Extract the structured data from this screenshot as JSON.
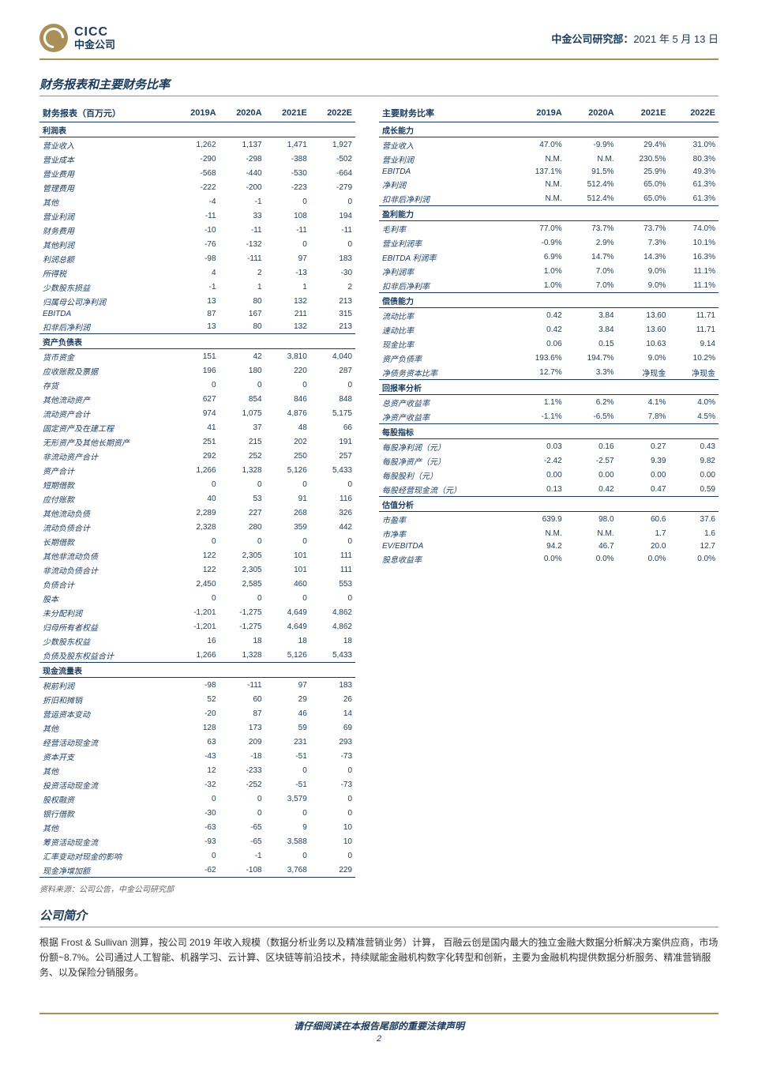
{
  "header": {
    "logo_en": "CICC",
    "logo_cn": "中金公司",
    "dept": "中金公司研究部：",
    "date": "2021 年 5 月 13 日"
  },
  "section1_title": "财务报表和主要财务比率",
  "left_table": {
    "header": [
      "财务报表（百万元）",
      "2019A",
      "2020A",
      "2021E",
      "2022E"
    ],
    "groups": [
      {
        "head": "利润表",
        "rows": [
          [
            "营业收入",
            "1,262",
            "1,137",
            "1,471",
            "1,927"
          ],
          [
            "营业成本",
            "-290",
            "-298",
            "-388",
            "-502"
          ],
          [
            "营业费用",
            "-568",
            "-440",
            "-530",
            "-664"
          ],
          [
            "管理费用",
            "-222",
            "-200",
            "-223",
            "-279"
          ],
          [
            "其他",
            "-4",
            "-1",
            "0",
            "0"
          ],
          [
            "营业利润",
            "-11",
            "33",
            "108",
            "194"
          ],
          [
            "财务费用",
            "-10",
            "-11",
            "-11",
            "-11"
          ],
          [
            "其他利润",
            "-76",
            "-132",
            "0",
            "0"
          ],
          [
            "利润总额",
            "-98",
            "-111",
            "97",
            "183"
          ],
          [
            "所得税",
            "4",
            "2",
            "-13",
            "-30"
          ],
          [
            "少数股东损益",
            "-1",
            "1",
            "1",
            "2"
          ],
          [
            "归属母公司净利润",
            "13",
            "80",
            "132",
            "213"
          ],
          [
            "EBITDA",
            "87",
            "167",
            "211",
            "315"
          ],
          [
            "扣非后净利润",
            "13",
            "80",
            "132",
            "213"
          ]
        ]
      },
      {
        "head": "资产负债表",
        "rows": [
          [
            "货币资金",
            "151",
            "42",
            "3,810",
            "4,040"
          ],
          [
            "应收账款及票据",
            "196",
            "180",
            "220",
            "287"
          ],
          [
            "存货",
            "0",
            "0",
            "0",
            "0"
          ],
          [
            "其他流动资产",
            "627",
            "854",
            "846",
            "848"
          ],
          [
            "流动资产合计",
            "974",
            "1,075",
            "4,876",
            "5,175"
          ],
          [
            "固定资产及在建工程",
            "41",
            "37",
            "48",
            "66"
          ],
          [
            "无形资产及其他长期资产",
            "251",
            "215",
            "202",
            "191"
          ],
          [
            "非流动资产合计",
            "292",
            "252",
            "250",
            "257"
          ],
          [
            "资产合计",
            "1,266",
            "1,328",
            "5,126",
            "5,433"
          ],
          [
            "短期借款",
            "0",
            "0",
            "0",
            "0"
          ],
          [
            "应付账款",
            "40",
            "53",
            "91",
            "116"
          ],
          [
            "其他流动负债",
            "2,289",
            "227",
            "268",
            "326"
          ],
          [
            "流动负债合计",
            "2,328",
            "280",
            "359",
            "442"
          ],
          [
            "长期借款",
            "0",
            "0",
            "0",
            "0"
          ],
          [
            "其他非流动负债",
            "122",
            "2,305",
            "101",
            "111"
          ],
          [
            "非流动负债合计",
            "122",
            "2,305",
            "101",
            "111"
          ],
          [
            "负债合计",
            "2,450",
            "2,585",
            "460",
            "553"
          ],
          [
            "股本",
            "0",
            "0",
            "0",
            "0"
          ],
          [
            "未分配利润",
            "-1,201",
            "-1,275",
            "4,649",
            "4,862"
          ],
          [
            "归母所有者权益",
            "-1,201",
            "-1,275",
            "4,649",
            "4,862"
          ],
          [
            "少数股东权益",
            "16",
            "18",
            "18",
            "18"
          ],
          [
            "负债及股东权益合计",
            "1,266",
            "1,328",
            "5,126",
            "5,433"
          ]
        ]
      },
      {
        "head": "现金流量表",
        "rows": [
          [
            "税前利润",
            "-98",
            "-111",
            "97",
            "183"
          ],
          [
            "折旧和摊销",
            "52",
            "60",
            "29",
            "26"
          ],
          [
            "营运资本变动",
            "-20",
            "87",
            "46",
            "14"
          ],
          [
            "其他",
            "128",
            "173",
            "59",
            "69"
          ],
          [
            "经营活动现金流",
            "63",
            "209",
            "231",
            "293"
          ],
          [
            "资本开支",
            "-43",
            "-18",
            "-51",
            "-73"
          ],
          [
            "其他",
            "12",
            "-233",
            "0",
            "0"
          ],
          [
            "投资活动现金流",
            "-32",
            "-252",
            "-51",
            "-73"
          ],
          [
            "股权融资",
            "0",
            "0",
            "3,579",
            "0"
          ],
          [
            "银行借款",
            "-30",
            "0",
            "0",
            "0"
          ],
          [
            "其他",
            "-63",
            "-65",
            "9",
            "10"
          ],
          [
            "筹资活动现金流",
            "-93",
            "-65",
            "3,588",
            "10"
          ],
          [
            "汇率变动对现金的影响",
            "0",
            "-1",
            "0",
            "0"
          ],
          [
            "现金净增加额",
            "-62",
            "-108",
            "3,768",
            "229"
          ]
        ]
      }
    ]
  },
  "right_table": {
    "header": [
      "主要财务比率",
      "2019A",
      "2020A",
      "2021E",
      "2022E"
    ],
    "groups": [
      {
        "head": "成长能力",
        "rows": [
          [
            "营业收入",
            "47.0%",
            "-9.9%",
            "29.4%",
            "31.0%"
          ],
          [
            "营业利润",
            "N.M.",
            "N.M.",
            "230.5%",
            "80.3%"
          ],
          [
            "EBITDA",
            "137.1%",
            "91.5%",
            "25.9%",
            "49.3%"
          ],
          [
            "净利润",
            "N.M.",
            "512.4%",
            "65.0%",
            "61.3%"
          ],
          [
            "扣非后净利润",
            "N.M.",
            "512.4%",
            "65.0%",
            "61.3%"
          ]
        ]
      },
      {
        "head": "盈利能力",
        "rows": [
          [
            "毛利率",
            "77.0%",
            "73.7%",
            "73.7%",
            "74.0%"
          ],
          [
            "营业利润率",
            "-0.9%",
            "2.9%",
            "7.3%",
            "10.1%"
          ],
          [
            "EBITDA 利润率",
            "6.9%",
            "14.7%",
            "14.3%",
            "16.3%"
          ],
          [
            "净利润率",
            "1.0%",
            "7.0%",
            "9.0%",
            "11.1%"
          ],
          [
            "扣非后净利率",
            "1.0%",
            "7.0%",
            "9.0%",
            "11.1%"
          ]
        ]
      },
      {
        "head": "偿债能力",
        "rows": [
          [
            "流动比率",
            "0.42",
            "3.84",
            "13.60",
            "11.71"
          ],
          [
            "速动比率",
            "0.42",
            "3.84",
            "13.60",
            "11.71"
          ],
          [
            "现金比率",
            "0.06",
            "0.15",
            "10.63",
            "9.14"
          ],
          [
            "资产负债率",
            "193.6%",
            "194.7%",
            "9.0%",
            "10.2%"
          ],
          [
            "净债务资本比率",
            "12.7%",
            "3.3%",
            "净现金",
            "净现金"
          ]
        ]
      },
      {
        "head": "回报率分析",
        "rows": [
          [
            "总资产收益率",
            "1.1%",
            "6.2%",
            "4.1%",
            "4.0%"
          ],
          [
            "净资产收益率",
            "-1.1%",
            "-6.5%",
            "7.8%",
            "4.5%"
          ]
        ]
      },
      {
        "head": "每股指标",
        "rows": [
          [
            "每股净利润（元）",
            "0.03",
            "0.16",
            "0.27",
            "0.43"
          ],
          [
            "每股净资产（元）",
            "-2.42",
            "-2.57",
            "9.39",
            "9.82"
          ],
          [
            "每股股利（元）",
            "0.00",
            "0.00",
            "0.00",
            "0.00"
          ],
          [
            "每股经营现金流（元）",
            "0.13",
            "0.42",
            "0.47",
            "0.59"
          ]
        ]
      },
      {
        "head": "估值分析",
        "rows": [
          [
            "市盈率",
            "639.9",
            "98.0",
            "60.6",
            "37.6"
          ],
          [
            "市净率",
            "N.M.",
            "N.M.",
            "1.7",
            "1.6"
          ],
          [
            "EV/EBITDA",
            "94.2",
            "46.7",
            "20.0",
            "12.7"
          ],
          [
            "股息收益率",
            "0.0%",
            "0.0%",
            "0.0%",
            "0.0%"
          ]
        ]
      }
    ]
  },
  "source_note": "资料来源：公司公告，中金公司研究部",
  "section2_title": "公司简介",
  "company_desc": "根据 Frost & Sullivan 测算，按公司 2019 年收入规模（数据分析业务以及精准营销业务）计算，  百融云创是国内最大的独立金融大数据分析解决方案供应商，市场份额~8.7%。公司通过人工智能、机器学习、云计算、区块链等前沿技术，持续赋能金融机构数字化转型和创新，主要为金融机构提供数据分析服务、精准营销服务、以及保险分销服务。",
  "footer_text": "请仔细阅读在本报告尾部的重要法律声明",
  "page_num": "2"
}
